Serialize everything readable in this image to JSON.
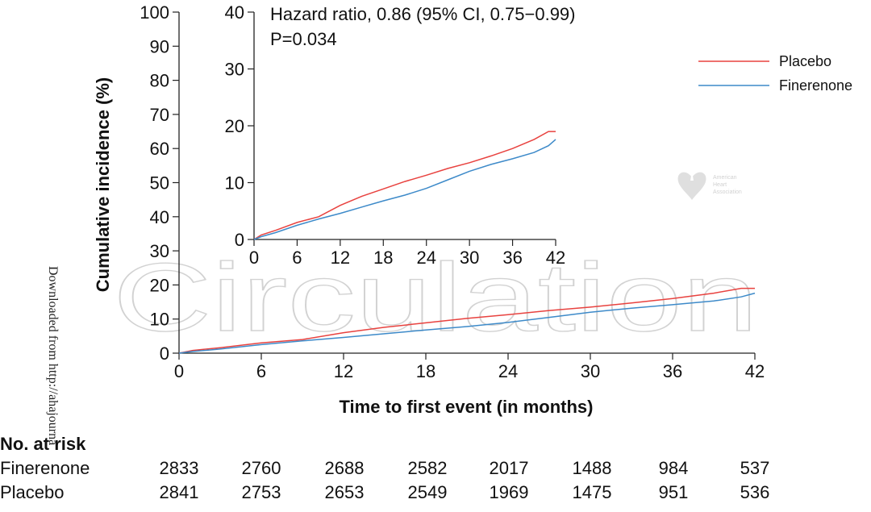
{
  "chart_data": {
    "type": "line",
    "ylabel": "Cumulative incidence (%)",
    "xlabel": "Time to first event (in months)",
    "main_x_ticks": [
      0,
      6,
      12,
      18,
      24,
      30,
      36,
      42
    ],
    "main_y_ticks": [
      0,
      10,
      20,
      30,
      40,
      50,
      60,
      70,
      80,
      90,
      100
    ],
    "main_xlim": [
      0,
      42
    ],
    "main_ylim": [
      0,
      100
    ],
    "inset_x_ticks": [
      0,
      6,
      12,
      18,
      24,
      30,
      36,
      42
    ],
    "inset_y_ticks": [
      0,
      10,
      20,
      30,
      40
    ],
    "inset_xlim": [
      0,
      42
    ],
    "inset_ylim": [
      0,
      40
    ],
    "series": [
      {
        "name": "Placebo",
        "color": "#e8423f",
        "x": [
          0,
          1,
          3,
          6,
          9,
          12,
          15,
          18,
          21,
          24,
          27,
          30,
          33,
          36,
          39,
          41,
          42
        ],
        "y": [
          0,
          0.8,
          1.6,
          3.0,
          4.0,
          6.0,
          7.6,
          8.9,
          10.2,
          11.3,
          12.5,
          13.5,
          14.7,
          16.0,
          17.6,
          19.0,
          19.0
        ]
      },
      {
        "name": "Finerenone",
        "color": "#3d8ac9",
        "x": [
          0,
          1,
          3,
          6,
          9,
          12,
          15,
          18,
          21,
          24,
          27,
          30,
          33,
          36,
          39,
          41,
          42
        ],
        "y": [
          0,
          0.5,
          1.2,
          2.5,
          3.6,
          4.6,
          5.7,
          6.8,
          7.8,
          9.0,
          10.5,
          12.0,
          13.2,
          14.2,
          15.3,
          16.5,
          17.6
        ]
      }
    ],
    "annotation": [
      "Hazard ratio, 0.86 (95% CI, 0.75−0.99)",
      "P=0.034"
    ],
    "legend": [
      "Placebo",
      "Finerenone"
    ]
  },
  "risk_table": {
    "title": "No. at risk",
    "rows": [
      {
        "label": "Finerenone",
        "values": [
          "2833",
          "2760",
          "2688",
          "2582",
          "2017",
          "1488",
          "984",
          "537"
        ]
      },
      {
        "label": "Placebo",
        "values": [
          "2841",
          "2753",
          "2653",
          "2549",
          "1969",
          "1475",
          "951",
          "536"
        ]
      }
    ]
  },
  "watermark": "Circulation",
  "side_text": "Downloaded from http://ahajourna",
  "logo_text": [
    "American",
    "Heart",
    "Association"
  ]
}
